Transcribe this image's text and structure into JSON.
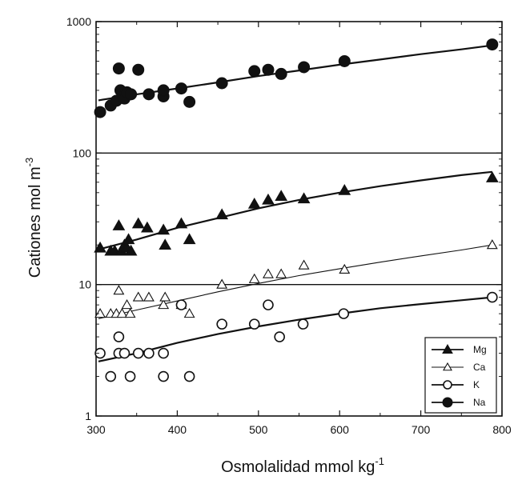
{
  "chart_data": {
    "type": "scatter",
    "xlabel": "Osmolalidad mmol kg",
    "xlabel_sup": "-1",
    "ylabel": "Cationes mol m",
    "ylabel_sup": "-3",
    "xlim": [
      300,
      800
    ],
    "ylim": [
      1,
      1000
    ],
    "y_scale": "log",
    "x_ticks": [
      300,
      400,
      500,
      600,
      700,
      800
    ],
    "y_ticks": [
      1,
      10,
      100,
      1000
    ],
    "legend_position": "bottom-right",
    "grid": false,
    "series": [
      {
        "name": "Mg",
        "marker": "triangle-filled",
        "points": [
          [
            305,
            19
          ],
          [
            318,
            18
          ],
          [
            323,
            18
          ],
          [
            328,
            28
          ],
          [
            331,
            18
          ],
          [
            335,
            20
          ],
          [
            338,
            19
          ],
          [
            340,
            22
          ],
          [
            343,
            18
          ],
          [
            352,
            29
          ],
          [
            363,
            27
          ],
          [
            383,
            26
          ],
          [
            385,
            20
          ],
          [
            405,
            29
          ],
          [
            415,
            22
          ],
          [
            455,
            34
          ],
          [
            495,
            41
          ],
          [
            512,
            44
          ],
          [
            528,
            47
          ],
          [
            556,
            45
          ],
          [
            606,
            52
          ],
          [
            788,
            65
          ]
        ],
        "fit": [
          [
            303,
            18.5
          ],
          [
            350,
            22
          ],
          [
            400,
            27
          ],
          [
            450,
            32
          ],
          [
            500,
            38
          ],
          [
            550,
            44
          ],
          [
            600,
            50
          ],
          [
            650,
            56
          ],
          [
            700,
            62
          ],
          [
            750,
            68
          ],
          [
            788,
            72
          ]
        ]
      },
      {
        "name": "Ca",
        "marker": "triangle-open",
        "points": [
          [
            305,
            6
          ],
          [
            318,
            6
          ],
          [
            325,
            6
          ],
          [
            328,
            9
          ],
          [
            332,
            6
          ],
          [
            338,
            7
          ],
          [
            342,
            6
          ],
          [
            352,
            8
          ],
          [
            365,
            8
          ],
          [
            383,
            7
          ],
          [
            385,
            8
          ],
          [
            405,
            7
          ],
          [
            415,
            6
          ],
          [
            455,
            10
          ],
          [
            495,
            11
          ],
          [
            512,
            12
          ],
          [
            528,
            12
          ],
          [
            556,
            14
          ],
          [
            606,
            13
          ],
          [
            788,
            20
          ]
        ],
        "fit": [
          [
            303,
            5.5
          ],
          [
            350,
            6.4
          ],
          [
            400,
            7.5
          ],
          [
            450,
            8.8
          ],
          [
            500,
            10.2
          ],
          [
            550,
            11.7
          ],
          [
            600,
            13.2
          ],
          [
            650,
            14.8
          ],
          [
            700,
            16.5
          ],
          [
            750,
            18.3
          ],
          [
            788,
            20
          ]
        ]
      },
      {
        "name": "K",
        "marker": "circle-open",
        "points": [
          [
            305,
            3
          ],
          [
            318,
            2
          ],
          [
            328,
            3
          ],
          [
            328,
            4
          ],
          [
            335,
            3
          ],
          [
            342,
            2
          ],
          [
            352,
            3
          ],
          [
            365,
            3
          ],
          [
            383,
            3
          ],
          [
            383,
            2
          ],
          [
            405,
            7
          ],
          [
            415,
            2
          ],
          [
            455,
            5
          ],
          [
            495,
            5
          ],
          [
            512,
            7
          ],
          [
            526,
            4
          ],
          [
            555,
            5
          ],
          [
            605,
            6
          ],
          [
            788,
            8
          ]
        ],
        "fit": [
          [
            303,
            2.6
          ],
          [
            350,
            3.0
          ],
          [
            400,
            3.6
          ],
          [
            450,
            4.2
          ],
          [
            500,
            4.8
          ],
          [
            550,
            5.4
          ],
          [
            600,
            6.0
          ],
          [
            650,
            6.6
          ],
          [
            700,
            7.1
          ],
          [
            750,
            7.6
          ],
          [
            788,
            8.0
          ]
        ]
      },
      {
        "name": "Na",
        "marker": "circle-filled",
        "points": [
          [
            305,
            205
          ],
          [
            318,
            230
          ],
          [
            325,
            250
          ],
          [
            328,
            440
          ],
          [
            330,
            300
          ],
          [
            333,
            270
          ],
          [
            335,
            260
          ],
          [
            338,
            290
          ],
          [
            343,
            280
          ],
          [
            352,
            430
          ],
          [
            365,
            280
          ],
          [
            383,
            270
          ],
          [
            383,
            300
          ],
          [
            405,
            310
          ],
          [
            415,
            245
          ],
          [
            455,
            340
          ],
          [
            495,
            420
          ],
          [
            512,
            430
          ],
          [
            528,
            400
          ],
          [
            556,
            450
          ],
          [
            606,
            500
          ],
          [
            788,
            670
          ]
        ],
        "fit": [
          [
            303,
            252
          ],
          [
            350,
            280
          ],
          [
            400,
            310
          ],
          [
            450,
            345
          ],
          [
            500,
            385
          ],
          [
            550,
            425
          ],
          [
            600,
            470
          ],
          [
            650,
            515
          ],
          [
            700,
            565
          ],
          [
            750,
            615
          ],
          [
            788,
            660
          ]
        ]
      }
    ]
  }
}
